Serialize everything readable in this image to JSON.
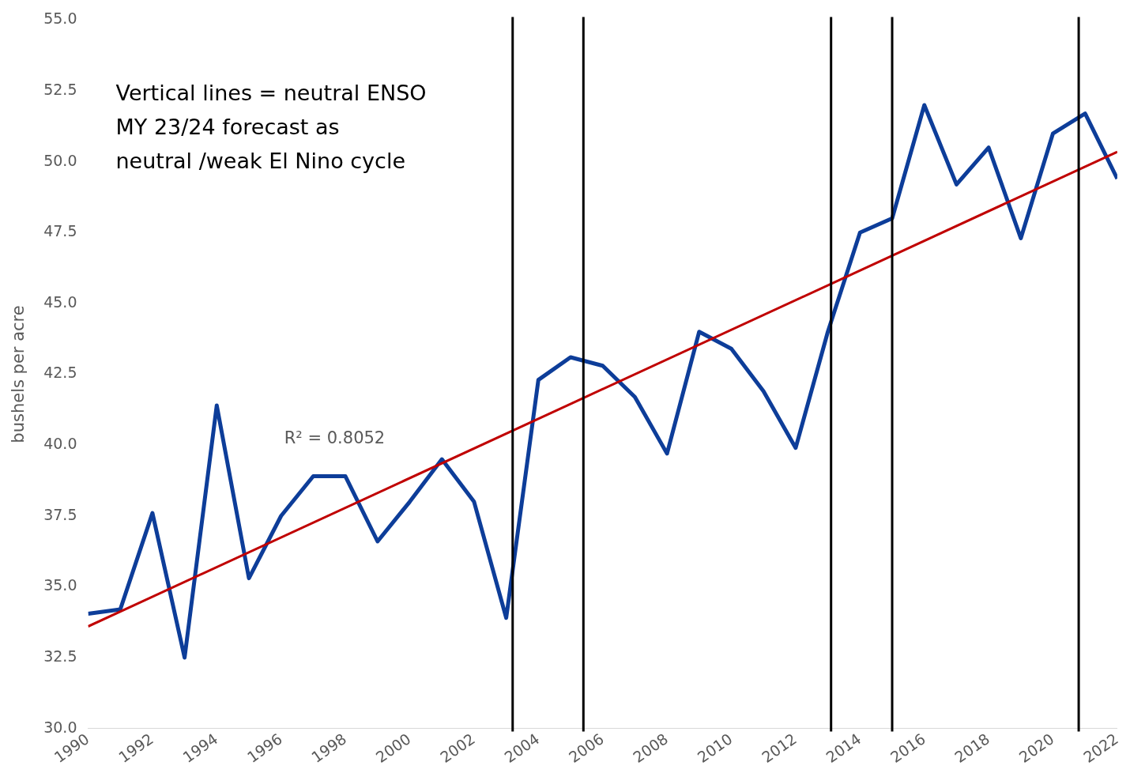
{
  "chart_data": {
    "type": "line",
    "ylabel": "bushels per acre",
    "annotations": [
      "Vertical lines = neutral ENSO",
      "MY 23/24 forecast as",
      "neutral /weak El Nino cycle",
      "R² = 0.8052"
    ],
    "x": [
      1990,
      1991,
      1992,
      1993,
      1994,
      1995,
      1996,
      1997,
      1998,
      1999,
      2000,
      2001,
      2002,
      2003,
      2004,
      2005,
      2006,
      2007,
      2008,
      2009,
      2010,
      2011,
      2012,
      2013,
      2014,
      2015,
      2016,
      2017,
      2018,
      2019,
      2020,
      2021,
      2022
    ],
    "series": [
      {
        "color": "#0d3d99",
        "values": [
          34.05,
          34.2,
          37.6,
          32.5,
          41.4,
          35.3,
          37.5,
          38.9,
          38.9,
          36.6,
          38.0,
          39.5,
          38.0,
          33.9,
          42.3,
          43.1,
          42.8,
          41.7,
          39.7,
          44.0,
          43.4,
          41.9,
          39.9,
          44.0,
          47.5,
          48.0,
          52.0,
          49.2,
          50.5,
          47.3,
          51.0,
          51.7,
          49.4
        ]
      },
      {
        "type": "line",
        "color": "#c00000",
        "x": [
          1990,
          2022
        ],
        "values": [
          33.6,
          50.35
        ]
      }
    ],
    "xlim": [
      1990,
      2022
    ],
    "xticks": [
      1990,
      1992,
      1994,
      1996,
      1998,
      2000,
      2002,
      2004,
      2006,
      2008,
      2010,
      2012,
      2014,
      2016,
      2018,
      2020,
      2022
    ],
    "ylim": [
      30,
      55
    ],
    "yticks": [
      {
        "value": 30,
        "label": "30.0"
      },
      {
        "value": 32.5,
        "label": "32.5"
      },
      {
        "value": 35,
        "label": "35.0"
      },
      {
        "value": 37.5,
        "label": "37.5"
      },
      {
        "value": 40,
        "label": "40.0"
      },
      {
        "value": 42.5,
        "label": "42.5"
      },
      {
        "value": 45,
        "label": "45.0"
      },
      {
        "value": 47.5,
        "label": "47.5"
      },
      {
        "value": 50,
        "label": "50.0"
      },
      {
        "value": 52.5,
        "label": "52.5"
      },
      {
        "value": 55,
        "label": "55.0"
      }
    ],
    "ref_lines": [
      {
        "axis": "x",
        "value": 2003.2,
        "color": "#000000"
      },
      {
        "axis": "x",
        "value": 2005.4,
        "color": "#000000"
      },
      {
        "axis": "x",
        "value": 2013.1,
        "color": "#000000"
      },
      {
        "axis": "x",
        "value": 2015.0,
        "color": "#000000"
      },
      {
        "axis": "x",
        "value": 2020.8,
        "color": "#000000"
      }
    ],
    "grid": false,
    "legend": false,
    "marker": "none",
    "line_style": "solid"
  }
}
